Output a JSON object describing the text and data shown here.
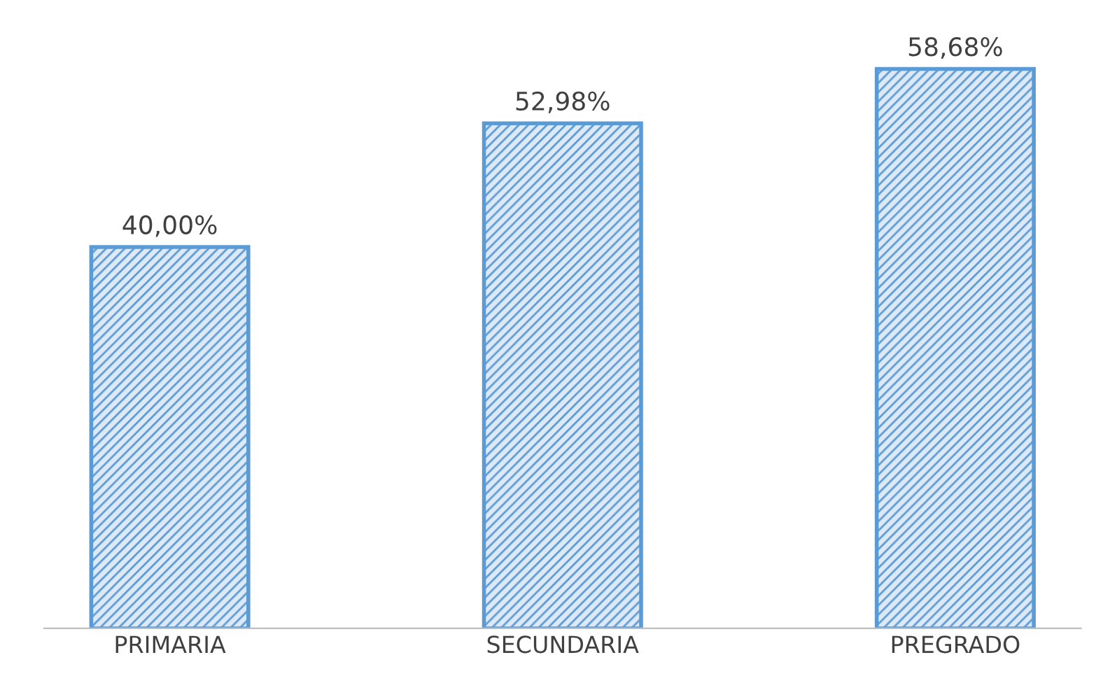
{
  "chart_data": {
    "type": "bar",
    "categories": [
      "PRIMARIA",
      "SECUNDARIA",
      "PREGRADO"
    ],
    "values": [
      40.0,
      52.98,
      58.68
    ],
    "value_labels": [
      "40,00%",
      "52,98%",
      "58,68%"
    ],
    "color": "#5b9bd5",
    "grid": false,
    "legend": false
  }
}
